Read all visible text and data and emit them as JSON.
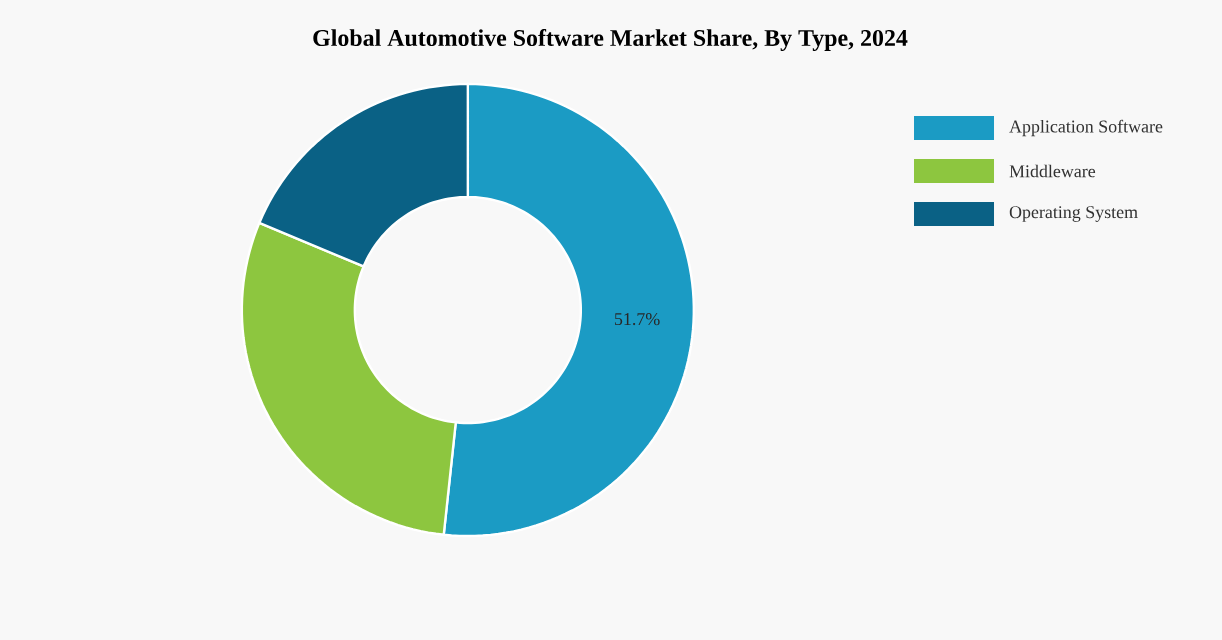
{
  "chart_data": {
    "type": "donut",
    "title": "Global Automotive Software Market Share, By Type, 2024",
    "categories": [
      "Application Software",
      "Middleware",
      "Operating System"
    ],
    "values": [
      51.7,
      29.6,
      18.7
    ],
    "colors": [
      "#1b9bc4",
      "#8dc63f",
      "#0a6185"
    ],
    "value_labels": [
      "51.7%",
      null,
      null
    ],
    "legend": "top right"
  }
}
